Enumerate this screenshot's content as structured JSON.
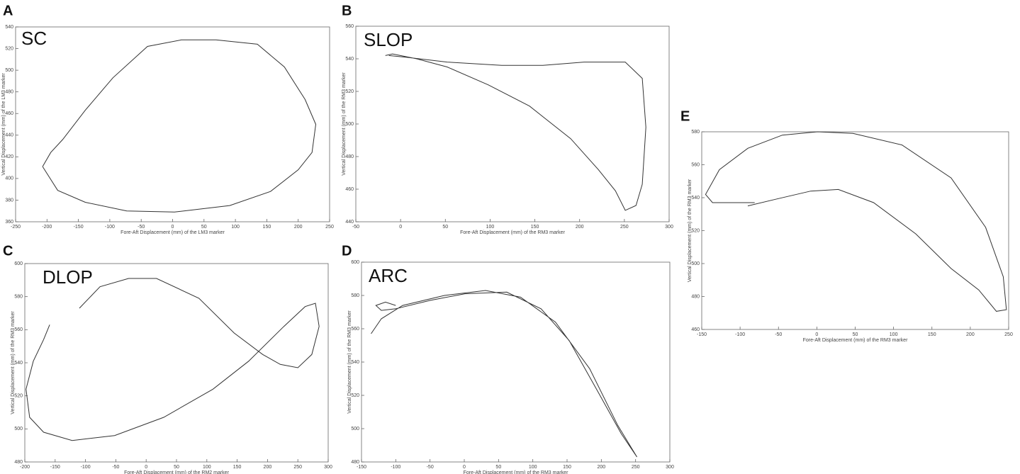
{
  "chart_data": [
    {
      "type": "line",
      "panel": "A",
      "title": "SC",
      "x_label": "Fore-Aft Displacement (mm) of the LM3 marker",
      "y_label": "Vertical Displacement (mm) of the LM3 marker",
      "xlim": [
        -250,
        250
      ],
      "xticks": [
        -250,
        -200,
        -150,
        -100,
        -50,
        0,
        50,
        100,
        150,
        200,
        250
      ],
      "ylim": [
        360,
        540
      ],
      "yticks": [
        360,
        380,
        400,
        420,
        440,
        460,
        480,
        500,
        520,
        540
      ],
      "color": "#333333",
      "x": [
        -207,
        -194,
        -175,
        -139,
        -95,
        -40,
        14,
        69,
        135,
        178,
        211,
        228,
        222,
        200,
        156,
        91,
        3,
        -73,
        -139,
        -183,
        -207
      ],
      "y": [
        411,
        424,
        436,
        463,
        493,
        522,
        528,
        528,
        524,
        503,
        473,
        450,
        424,
        408,
        388,
        375,
        369,
        370,
        378,
        389,
        411
      ]
    },
    {
      "type": "line",
      "panel": "B",
      "title": "SLOP",
      "x_label": "Fore-Aft Displacement (mm) of the RM3 marker",
      "y_label": "Vertical Displacement (mm) of the RM3 marker",
      "xlim": [
        -50,
        300
      ],
      "xticks": [
        -50,
        0,
        50,
        100,
        150,
        200,
        250,
        300
      ],
      "ylim": [
        440,
        560
      ],
      "yticks": [
        440,
        460,
        480,
        500,
        520,
        540,
        560
      ],
      "color": "#333333",
      "x": [
        -13,
        6,
        52,
        113,
        159,
        205,
        251,
        270,
        274,
        270,
        263,
        251,
        240,
        221,
        190,
        144,
        98,
        52,
        18,
        -9,
        -17
      ],
      "y": [
        542,
        541,
        538,
        536,
        536,
        538,
        538,
        528,
        498,
        463,
        450,
        447,
        459,
        472,
        491,
        511,
        524,
        535,
        540,
        543,
        542
      ]
    },
    {
      "type": "line",
      "panel": "C",
      "title": "DLOP",
      "x_label": "Fore-Aft Displacement (mm) of the RM2 marker",
      "y_label": "Vertical Displacement (mm) of the RM3 marker",
      "xlim": [
        -200,
        300
      ],
      "xticks": [
        -200,
        -150,
        -100,
        -50,
        0,
        50,
        100,
        150,
        200,
        250,
        300
      ],
      "ylim": [
        480,
        600
      ],
      "yticks": [
        480,
        500,
        520,
        540,
        560,
        580,
        600
      ],
      "color": "#333333",
      "x": [
        -159,
        -169,
        -186,
        -198,
        -192,
        -169,
        -122,
        -52,
        29,
        110,
        169,
        227,
        262,
        279,
        285,
        273,
        250,
        221,
        192,
        145,
        87,
        17,
        -29,
        -76,
        -110
      ],
      "y": [
        563,
        554,
        541,
        524,
        507,
        498,
        493,
        496,
        507,
        524,
        541,
        562,
        574,
        576,
        562,
        545,
        537,
        539,
        545,
        558,
        579,
        591,
        591,
        586,
        573
      ]
    },
    {
      "type": "line",
      "panel": "D",
      "title": "ARC",
      "x_label": "Fore-Aft Displacement (mm) of the RM3 marker",
      "y_label": "Vertical Displacement (mm) of the RM3 marker",
      "xlim": [
        -150,
        300
      ],
      "xticks": [
        -150,
        -100,
        -50,
        0,
        50,
        100,
        150,
        200,
        250,
        300
      ],
      "ylim": [
        480,
        600
      ],
      "yticks": [
        480,
        500,
        520,
        540,
        560,
        580,
        600
      ],
      "color": "#333333",
      "x": [
        -136,
        -121,
        -90,
        -29,
        31,
        82,
        133,
        183,
        224,
        252,
        229,
        194,
        153,
        112,
        62,
        1,
        -50,
        -100,
        -121,
        -129,
        -115,
        -100
      ],
      "y": [
        557,
        566,
        574,
        580,
        583,
        579,
        564,
        536,
        502,
        483,
        497,
        523,
        553,
        572,
        582,
        581,
        577,
        572,
        571,
        574,
        576,
        574
      ]
    },
    {
      "type": "line",
      "panel": "E",
      "x_label": "Fore-Aft Displacement (mm) of the RM3 marker",
      "y_label": "Vertical Displacement (mm) of the RM3 marker",
      "xlim": [
        -150,
        250
      ],
      "xticks": [
        -150,
        -100,
        -50,
        0,
        50,
        100,
        150,
        200,
        250
      ],
      "ylim": [
        460,
        580
      ],
      "yticks": [
        460,
        480,
        500,
        520,
        540,
        560,
        580
      ],
      "color": "#333333",
      "x": [
        -90,
        -54,
        -8,
        28,
        74,
        129,
        175,
        211,
        234,
        247,
        243,
        220,
        175,
        111,
        47,
        1,
        -45,
        -90,
        -127,
        -145,
        -136,
        -109,
        -81
      ],
      "y": [
        535,
        539,
        544,
        545,
        537,
        518,
        497,
        484,
        471,
        472,
        492,
        522,
        552,
        572,
        579,
        580,
        578,
        570,
        557,
        542,
        537,
        537,
        537
      ]
    }
  ]
}
